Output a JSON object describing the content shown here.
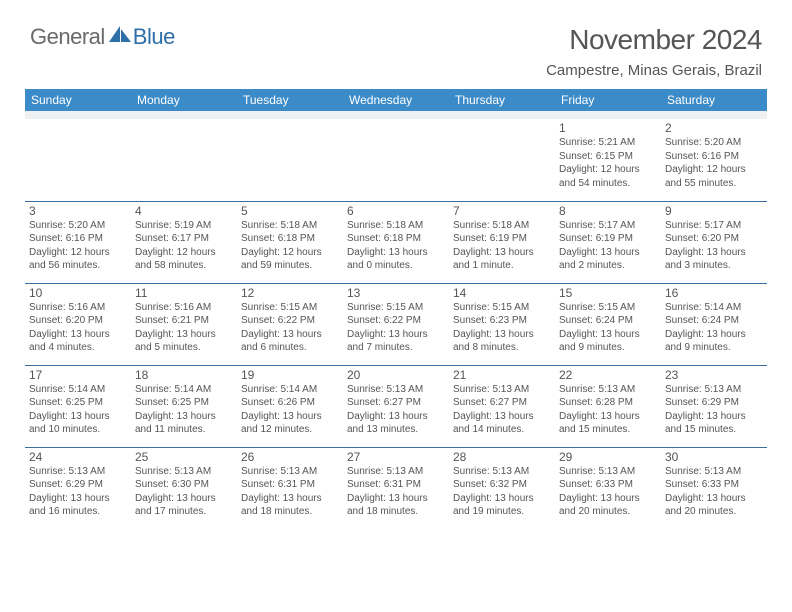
{
  "brand": {
    "text1": "General",
    "text2": "Blue"
  },
  "title": "November 2024",
  "location": "Campestre, Minas Gerais, Brazil",
  "colors": {
    "header_bg": "#3b8bc9",
    "header_text": "#ffffff",
    "border": "#3b6fa0",
    "text": "#555555",
    "brand_gray": "#6a6a6a",
    "brand_blue": "#2f6fa7"
  },
  "weekdays": [
    "Sunday",
    "Monday",
    "Tuesday",
    "Wednesday",
    "Thursday",
    "Friday",
    "Saturday"
  ],
  "weeks": [
    [
      null,
      null,
      null,
      null,
      null,
      {
        "n": "1",
        "sr": "5:21 AM",
        "ss": "6:15 PM",
        "dl": "12 hours and 54 minutes."
      },
      {
        "n": "2",
        "sr": "5:20 AM",
        "ss": "6:16 PM",
        "dl": "12 hours and 55 minutes."
      }
    ],
    [
      {
        "n": "3",
        "sr": "5:20 AM",
        "ss": "6:16 PM",
        "dl": "12 hours and 56 minutes."
      },
      {
        "n": "4",
        "sr": "5:19 AM",
        "ss": "6:17 PM",
        "dl": "12 hours and 58 minutes."
      },
      {
        "n": "5",
        "sr": "5:18 AM",
        "ss": "6:18 PM",
        "dl": "12 hours and 59 minutes."
      },
      {
        "n": "6",
        "sr": "5:18 AM",
        "ss": "6:18 PM",
        "dl": "13 hours and 0 minutes."
      },
      {
        "n": "7",
        "sr": "5:18 AM",
        "ss": "6:19 PM",
        "dl": "13 hours and 1 minute."
      },
      {
        "n": "8",
        "sr": "5:17 AM",
        "ss": "6:19 PM",
        "dl": "13 hours and 2 minutes."
      },
      {
        "n": "9",
        "sr": "5:17 AM",
        "ss": "6:20 PM",
        "dl": "13 hours and 3 minutes."
      }
    ],
    [
      {
        "n": "10",
        "sr": "5:16 AM",
        "ss": "6:20 PM",
        "dl": "13 hours and 4 minutes."
      },
      {
        "n": "11",
        "sr": "5:16 AM",
        "ss": "6:21 PM",
        "dl": "13 hours and 5 minutes."
      },
      {
        "n": "12",
        "sr": "5:15 AM",
        "ss": "6:22 PM",
        "dl": "13 hours and 6 minutes."
      },
      {
        "n": "13",
        "sr": "5:15 AM",
        "ss": "6:22 PM",
        "dl": "13 hours and 7 minutes."
      },
      {
        "n": "14",
        "sr": "5:15 AM",
        "ss": "6:23 PM",
        "dl": "13 hours and 8 minutes."
      },
      {
        "n": "15",
        "sr": "5:15 AM",
        "ss": "6:24 PM",
        "dl": "13 hours and 9 minutes."
      },
      {
        "n": "16",
        "sr": "5:14 AM",
        "ss": "6:24 PM",
        "dl": "13 hours and 9 minutes."
      }
    ],
    [
      {
        "n": "17",
        "sr": "5:14 AM",
        "ss": "6:25 PM",
        "dl": "13 hours and 10 minutes."
      },
      {
        "n": "18",
        "sr": "5:14 AM",
        "ss": "6:25 PM",
        "dl": "13 hours and 11 minutes."
      },
      {
        "n": "19",
        "sr": "5:14 AM",
        "ss": "6:26 PM",
        "dl": "13 hours and 12 minutes."
      },
      {
        "n": "20",
        "sr": "5:13 AM",
        "ss": "6:27 PM",
        "dl": "13 hours and 13 minutes."
      },
      {
        "n": "21",
        "sr": "5:13 AM",
        "ss": "6:27 PM",
        "dl": "13 hours and 14 minutes."
      },
      {
        "n": "22",
        "sr": "5:13 AM",
        "ss": "6:28 PM",
        "dl": "13 hours and 15 minutes."
      },
      {
        "n": "23",
        "sr": "5:13 AM",
        "ss": "6:29 PM",
        "dl": "13 hours and 15 minutes."
      }
    ],
    [
      {
        "n": "24",
        "sr": "5:13 AM",
        "ss": "6:29 PM",
        "dl": "13 hours and 16 minutes."
      },
      {
        "n": "25",
        "sr": "5:13 AM",
        "ss": "6:30 PM",
        "dl": "13 hours and 17 minutes."
      },
      {
        "n": "26",
        "sr": "5:13 AM",
        "ss": "6:31 PM",
        "dl": "13 hours and 18 minutes."
      },
      {
        "n": "27",
        "sr": "5:13 AM",
        "ss": "6:31 PM",
        "dl": "13 hours and 18 minutes."
      },
      {
        "n": "28",
        "sr": "5:13 AM",
        "ss": "6:32 PM",
        "dl": "13 hours and 19 minutes."
      },
      {
        "n": "29",
        "sr": "5:13 AM",
        "ss": "6:33 PM",
        "dl": "13 hours and 20 minutes."
      },
      {
        "n": "30",
        "sr": "5:13 AM",
        "ss": "6:33 PM",
        "dl": "13 hours and 20 minutes."
      }
    ]
  ],
  "labels": {
    "sunrise": "Sunrise:",
    "sunset": "Sunset:",
    "daylight": "Daylight:"
  }
}
